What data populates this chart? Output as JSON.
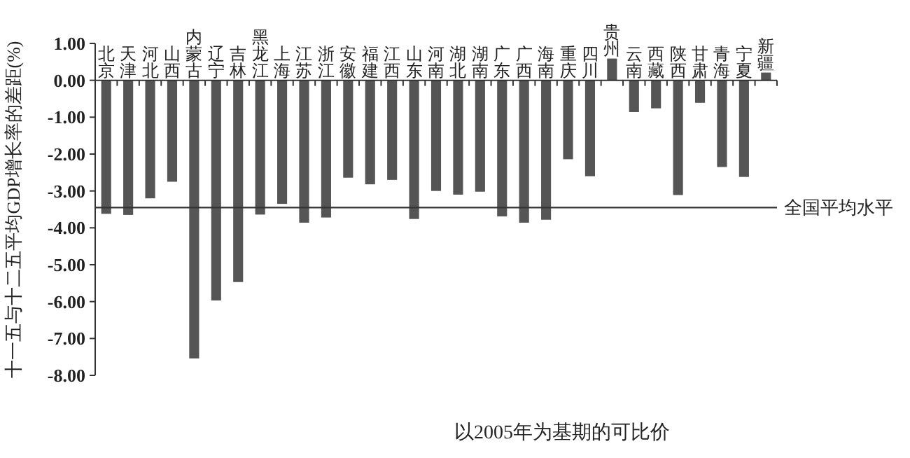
{
  "chart_data": {
    "type": "bar",
    "xlabel": "以2005年为基期的可比价",
    "ylabel": "十一五与十二五平均GDP增长率的差距(%)",
    "categories": [
      "北京",
      "天津",
      "河北",
      "山西",
      "内蒙古",
      "辽宁",
      "吉林",
      "黑龙江",
      "上海",
      "江苏",
      "浙江",
      "安徽",
      "福建",
      "江西",
      "山东",
      "河南",
      "湖北",
      "湖南",
      "广东",
      "广西",
      "海南",
      "重庆",
      "四川",
      "贵州",
      "云南",
      "西藏",
      "陕西",
      "甘肃",
      "青海",
      "宁夏",
      "新疆"
    ],
    "values": [
      -3.62,
      -3.65,
      -3.2,
      -2.75,
      -7.54,
      -5.97,
      -5.47,
      -3.64,
      -3.35,
      -3.86,
      -3.72,
      -2.64,
      -2.82,
      -2.7,
      -3.76,
      -3.0,
      -3.1,
      -3.02,
      -3.69,
      -3.86,
      -3.78,
      -2.14,
      -2.6,
      0.59,
      -0.86,
      -0.76,
      -3.11,
      -0.61,
      -2.35,
      -2.62,
      0.21
    ],
    "color": "#555555",
    "ylim": [
      -8,
      1
    ],
    "yticks": [
      {
        "value": 1,
        "label": "1.00"
      },
      {
        "value": 0,
        "label": "0.00"
      },
      {
        "value": -1,
        "label": "-1.00"
      },
      {
        "value": -2,
        "label": "-2.00"
      },
      {
        "value": -3,
        "label": "-3.00"
      },
      {
        "value": -4,
        "label": "-4.00"
      },
      {
        "value": -5,
        "label": "-5.00"
      },
      {
        "value": -6,
        "label": "-6.00"
      },
      {
        "value": -7,
        "label": "-7.00"
      },
      {
        "value": -8,
        "label": "-8.00"
      }
    ],
    "ref_lines": [
      {
        "axis": "y",
        "value": -3.45,
        "label": "全国平均水平",
        "color": "#333333"
      }
    ],
    "grid": false
  }
}
